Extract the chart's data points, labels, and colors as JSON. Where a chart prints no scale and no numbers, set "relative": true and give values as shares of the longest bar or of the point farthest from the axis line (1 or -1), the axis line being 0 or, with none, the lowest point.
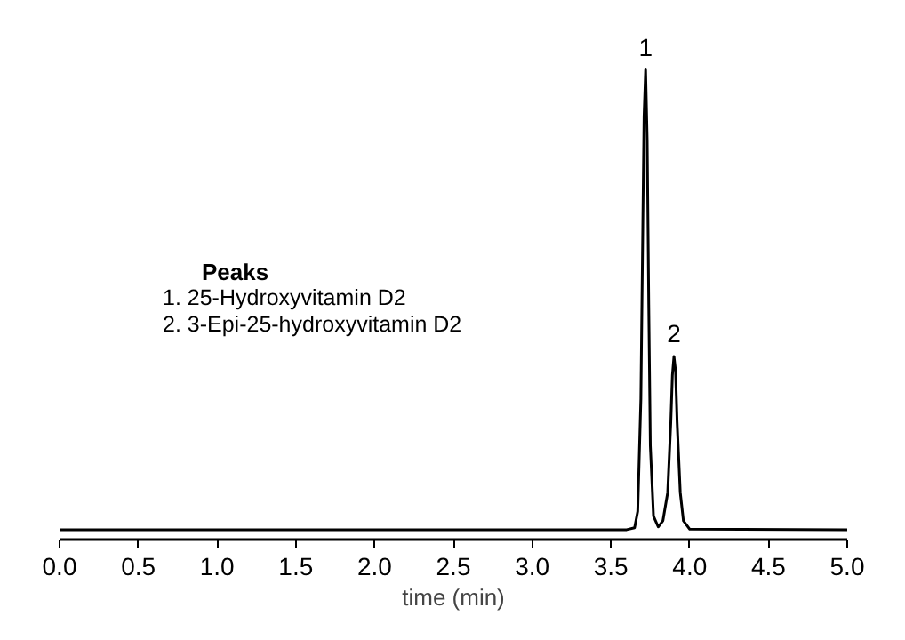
{
  "chart_data": {
    "type": "line",
    "relative": true,
    "xlabel": "time (min)",
    "xlim": [
      0,
      5
    ],
    "xticks": [
      {
        "value": 0,
        "label": "0.0"
      },
      {
        "value": 0.5,
        "label": "0.5"
      },
      {
        "value": 1,
        "label": "1.0"
      },
      {
        "value": 1.5,
        "label": "1.5"
      },
      {
        "value": 2,
        "label": "2.0"
      },
      {
        "value": 2.5,
        "label": "2.5"
      },
      {
        "value": 3,
        "label": "3.0"
      },
      {
        "value": 3.5,
        "label": "3.5"
      },
      {
        "value": 4,
        "label": "4.0"
      },
      {
        "value": 4.5,
        "label": "4.5"
      },
      {
        "value": 5,
        "label": "5.0"
      }
    ],
    "grid": false,
    "x": [
      0,
      3.6,
      3.65,
      3.67,
      3.69,
      3.7,
      3.71,
      3.72,
      3.73,
      3.74,
      3.75,
      3.77,
      3.8,
      3.83,
      3.86,
      3.88,
      3.89,
      3.9,
      3.91,
      3.92,
      3.94,
      3.96,
      4.0,
      5.0
    ],
    "series": [
      {
        "color": "#000000",
        "values": [
          0.021,
          0.021,
          0.025,
          0.06,
          0.3,
          0.6,
          0.9,
          1,
          0.85,
          0.5,
          0.2,
          0.05,
          0.027,
          0.04,
          0.1,
          0.25,
          0.35,
          0.39,
          0.36,
          0.25,
          0.1,
          0.04,
          0.022,
          0.021
        ]
      }
    ],
    "annotations": [
      {
        "text": "1",
        "x": 3.72,
        "y": 1
      },
      {
        "text": "2",
        "x": 3.9,
        "y": 0.39
      },
      "Peaks",
      "1. 25-Hydroxyvitamin D2",
      "2. 3-Epi-25-hydroxyvitamin D2"
    ]
  }
}
